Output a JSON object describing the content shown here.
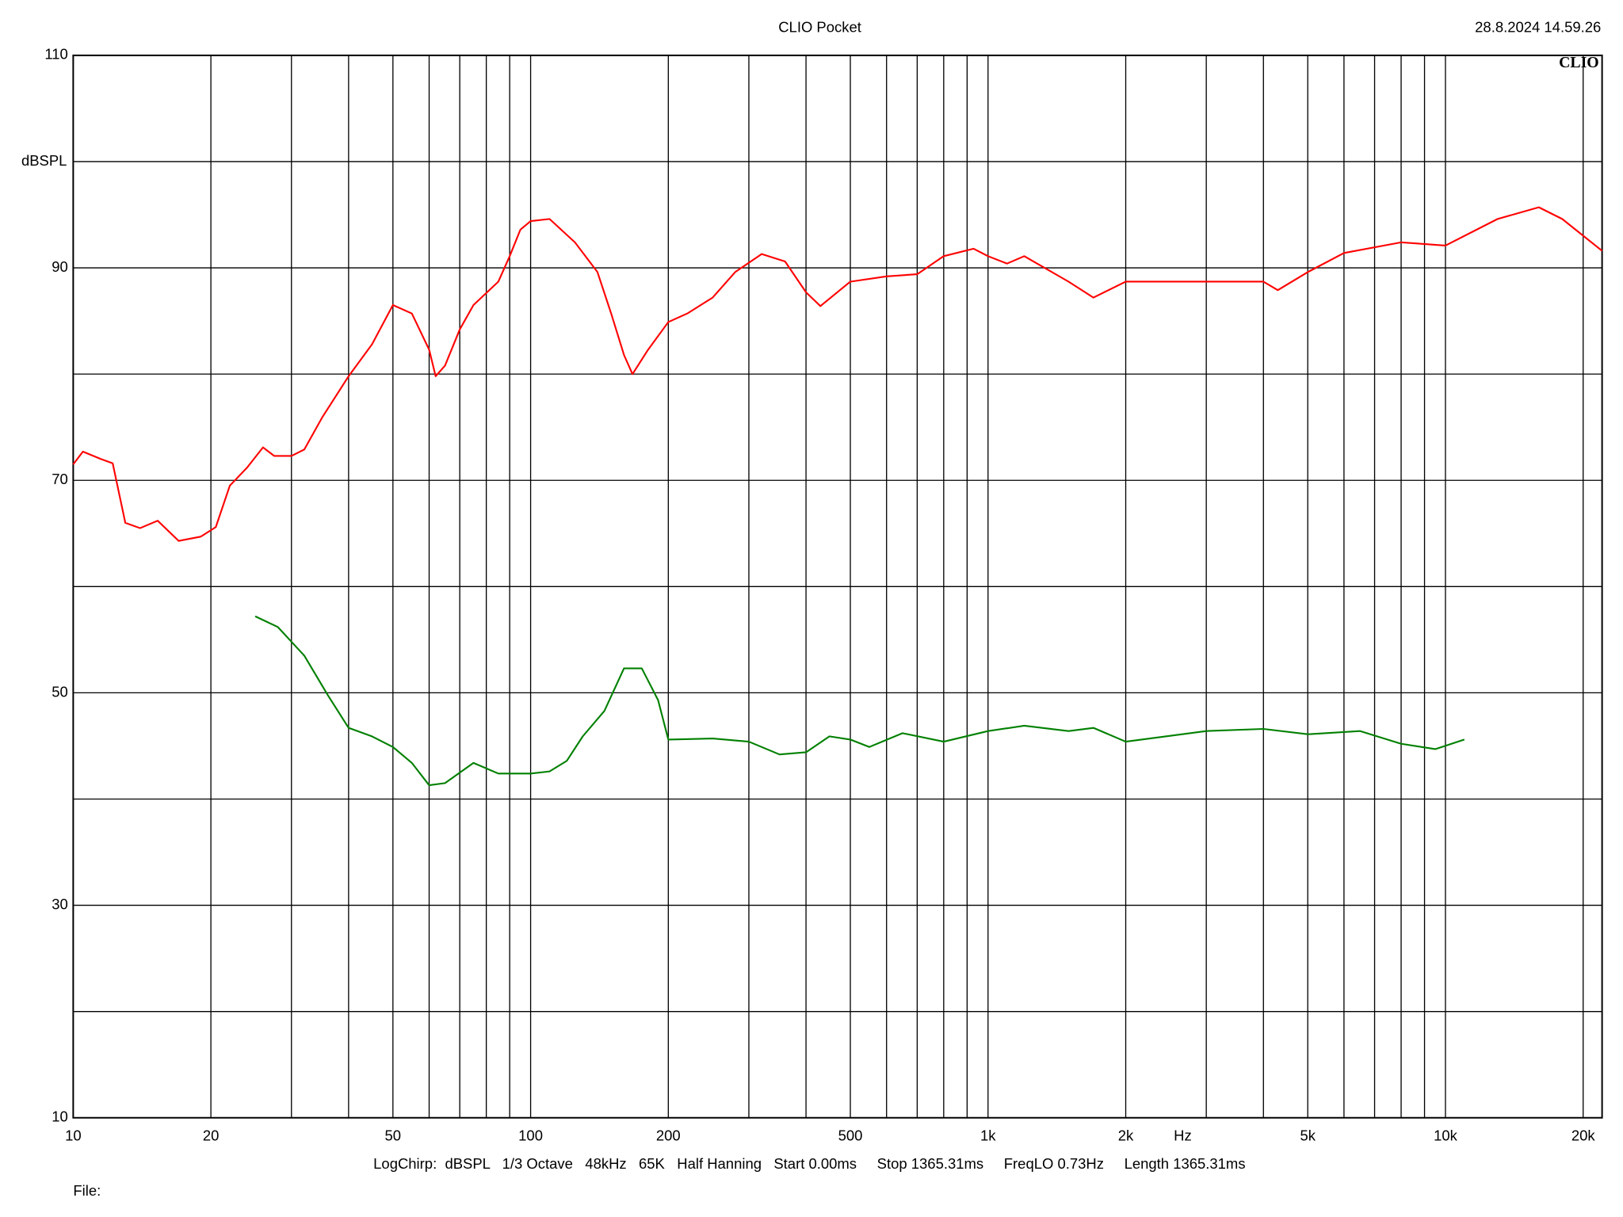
{
  "chart_data": {
    "type": "line",
    "title": "CLIO Pocket",
    "timestamp": "28.8.2024 14.59.26",
    "brand": "CLIO",
    "y_label": "dBSPL",
    "x_label": "Hz",
    "footer": "LogChirp:  dBSPL   1/3 Octave   48kHz   65K   Half Hanning   Start 0.00ms     Stop 1365.31ms     FreqLO 0.73Hz     Length 1365.31ms",
    "file_label": "File:",
    "x_scale": "log",
    "grid": true,
    "xlim": [
      10,
      22000
    ],
    "ylim": [
      10,
      110
    ],
    "xticks": [
      10,
      20,
      50,
      100,
      200,
      500,
      {
        "value": 1000,
        "label": "1k"
      },
      {
        "value": 2000,
        "label": "2k"
      },
      {
        "value": 5000,
        "label": "5k"
      },
      {
        "value": 10000,
        "label": "10k"
      },
      {
        "value": 20000,
        "label": "20k"
      }
    ],
    "x_minor_grid": [
      30,
      40,
      60,
      70,
      80,
      90,
      300,
      400,
      600,
      700,
      800,
      900,
      3000,
      4000,
      6000,
      7000,
      8000,
      9000
    ],
    "yticks": [
      10,
      30,
      50,
      70,
      90,
      110
    ],
    "y_minor_grid": [
      20,
      40,
      60,
      80,
      100
    ],
    "series": [
      {
        "color": "#ff0000",
        "x": [
          10,
          10.5,
          11.5,
          12.2,
          13,
          14,
          15.3,
          17,
          19,
          20.5,
          22,
          24,
          26,
          27.5,
          30,
          32,
          35,
          40,
          45,
          50,
          55,
          60,
          62,
          65,
          70,
          75,
          85,
          90,
          95,
          100,
          110,
          125,
          140,
          150,
          160,
          167,
          180,
          200,
          220,
          250,
          280,
          320,
          360,
          400,
          430,
          500,
          600,
          700,
          800,
          930,
          1000,
          1100,
          1200,
          1500,
          1700,
          2000,
          2500,
          3000,
          4000,
          4300,
          5000,
          6000,
          8000,
          10000,
          13000,
          16000,
          18000,
          22000
        ],
        "values": [
          71.5,
          72.7,
          72,
          71.6,
          66,
          65.5,
          66.2,
          64.3,
          64.7,
          65.6,
          69.5,
          71.2,
          73.1,
          72.3,
          72.3,
          72.9,
          75.9,
          79.8,
          82.8,
          86.5,
          85.7,
          82.3,
          79.8,
          80.8,
          84.2,
          86.5,
          88.7,
          91.1,
          93.6,
          94.4,
          94.6,
          92.4,
          89.6,
          85.7,
          81.8,
          80,
          82.2,
          84.9,
          85.7,
          87.2,
          89.6,
          91.3,
          90.6,
          87.7,
          86.4,
          88.7,
          89.2,
          89.4,
          91.1,
          91.8,
          91.1,
          90.4,
          91.1,
          88.7,
          87.2,
          88.7,
          88.7,
          88.7,
          88.7,
          87.9,
          89.6,
          91.4,
          92.4,
          92.1,
          94.6,
          95.7,
          94.6,
          91.6
        ]
      },
      {
        "color": "#008000",
        "x": [
          25,
          28,
          32,
          36,
          40,
          45,
          50,
          55,
          60,
          65,
          75,
          85,
          100,
          110,
          120,
          130,
          145,
          160,
          175,
          190,
          200,
          250,
          300,
          350,
          400,
          450,
          500,
          550,
          650,
          800,
          1000,
          1200,
          1500,
          1700,
          2000,
          3000,
          4000,
          5000,
          6500,
          8000,
          9500,
          11000
        ],
        "values": [
          57.2,
          56.2,
          53.5,
          49.8,
          46.7,
          45.9,
          44.9,
          43.4,
          41.3,
          41.5,
          43.4,
          42.4,
          42.4,
          42.6,
          43.6,
          45.9,
          48.3,
          52.3,
          52.3,
          49.3,
          45.6,
          45.7,
          45.4,
          44.2,
          44.4,
          45.9,
          45.6,
          44.9,
          46.2,
          45.4,
          46.4,
          46.9,
          46.4,
          46.7,
          45.4,
          46.4,
          46.6,
          46.1,
          46.4,
          45.2,
          44.7,
          45.6
        ]
      }
    ]
  }
}
